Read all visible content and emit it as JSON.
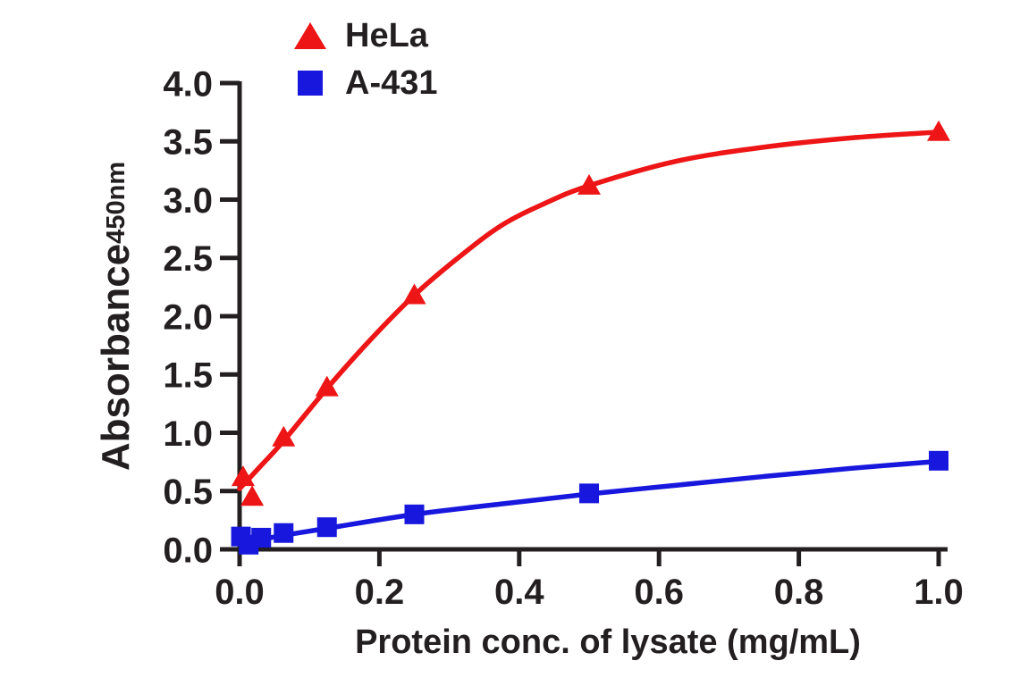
{
  "figure": {
    "background": "#ffffff",
    "axis_color": "#231f20",
    "text_color": "#231f20"
  },
  "legend": {
    "items": [
      {
        "label": "HeLa",
        "marker": "triangle",
        "color": "#ed1515"
      },
      {
        "label": "A-431",
        "marker": "square",
        "color": "#1717dd"
      }
    ]
  },
  "axis_titles": {
    "x": "Protein conc. of lysate (mg/mL)",
    "y_main": "Absorbance",
    "y_sub": "450nm"
  },
  "chart_data": {
    "type": "line",
    "title": "",
    "xlabel": "Protein conc. of lysate (mg/mL)",
    "ylabel": "Absorbance 450nm",
    "xlim": [
      0,
      1.0
    ],
    "ylim": [
      0,
      4.0
    ],
    "xticks": [
      0,
      0.2,
      0.4,
      0.6,
      0.8,
      1.0
    ],
    "xtick_labels": [
      "0.0",
      "0.2",
      "0.4",
      "0.6",
      "0.8",
      "1.0"
    ],
    "yticks": [
      0,
      0.5,
      1.0,
      1.5,
      2.0,
      2.5,
      3.0,
      3.5,
      4.0
    ],
    "ytick_labels": [
      "0.0",
      "0.5",
      "1.0",
      "1.5",
      "2.0",
      "2.5",
      "3.0",
      "3.5",
      "4.0"
    ],
    "grid": false,
    "legend_position": "top-left",
    "series": [
      {
        "name": "HeLa",
        "color": "#ed1515",
        "marker": "triangle",
        "points": [
          [
            0.005,
            0.62
          ],
          [
            0.018,
            0.45
          ],
          [
            0.063,
            0.96
          ],
          [
            0.125,
            1.39
          ],
          [
            0.25,
            2.18
          ],
          [
            0.5,
            3.12
          ],
          [
            1.0,
            3.58
          ]
        ],
        "fit_curve": [
          [
            0,
            0.52
          ],
          [
            0.031,
            0.72
          ],
          [
            0.063,
            0.93
          ],
          [
            0.125,
            1.38
          ],
          [
            0.1875,
            1.8
          ],
          [
            0.25,
            2.18
          ],
          [
            0.3125,
            2.5
          ],
          [
            0.375,
            2.78
          ],
          [
            0.4375,
            2.97
          ],
          [
            0.5,
            3.12
          ],
          [
            0.625,
            3.33
          ],
          [
            0.75,
            3.45
          ],
          [
            0.875,
            3.53
          ],
          [
            1.0,
            3.58
          ]
        ]
      },
      {
        "name": "A-431",
        "color": "#1717dd",
        "marker": "square",
        "points": [
          [
            0.002,
            0.11
          ],
          [
            0.013,
            0.04
          ],
          [
            0.031,
            0.1
          ],
          [
            0.063,
            0.14
          ],
          [
            0.125,
            0.19
          ],
          [
            0.25,
            0.3
          ],
          [
            0.5,
            0.48
          ],
          [
            1.0,
            0.76
          ]
        ],
        "fit_curve": [
          [
            0,
            0.05
          ],
          [
            0.063,
            0.12
          ],
          [
            0.125,
            0.18
          ],
          [
            0.25,
            0.3
          ],
          [
            0.375,
            0.39
          ],
          [
            0.5,
            0.475
          ],
          [
            0.625,
            0.55
          ],
          [
            0.75,
            0.625
          ],
          [
            0.875,
            0.695
          ],
          [
            1.0,
            0.755
          ]
        ]
      }
    ]
  }
}
